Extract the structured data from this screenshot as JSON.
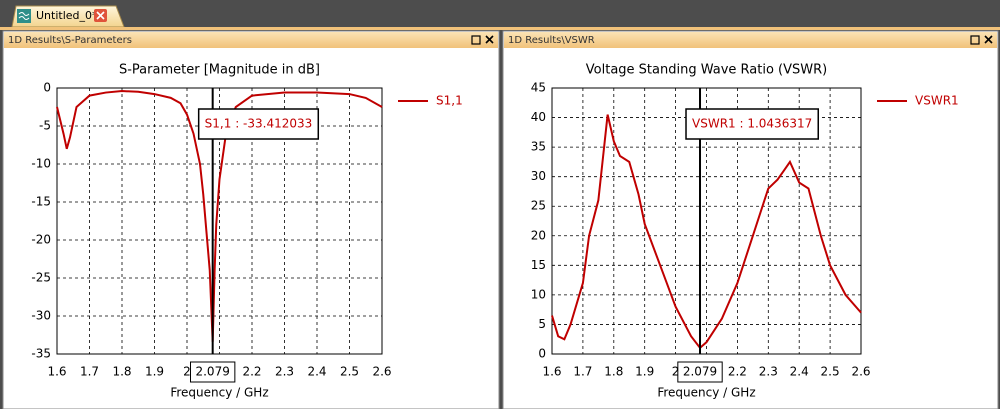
{
  "window": {
    "tab": "Untitled_0*"
  },
  "chart_data": [
    {
      "type": "line",
      "panel_title": "1D Results\\S-Parameters",
      "title": "S-Parameter [Magnitude in dB]",
      "xlabel": "Frequency / GHz",
      "x": [
        1.6,
        1.62,
        1.63,
        1.64,
        1.66,
        1.7,
        1.75,
        1.8,
        1.85,
        1.9,
        1.95,
        1.98,
        2.0,
        2.02,
        2.04,
        2.05,
        2.06,
        2.07,
        2.079,
        2.085,
        2.09,
        2.1,
        2.12,
        2.15,
        2.2,
        2.3,
        2.4,
        2.5,
        2.55,
        2.6
      ],
      "series": [
        {
          "name": "S1,1",
          "color": "#c00000",
          "values": [
            -2.5,
            -6,
            -8,
            -6.5,
            -2.5,
            -1,
            -0.6,
            -0.4,
            -0.5,
            -0.8,
            -1.3,
            -2,
            -3.5,
            -6,
            -10,
            -14,
            -19,
            -24,
            -33.4,
            -24,
            -18,
            -12,
            -6,
            -2.5,
            -1,
            -0.6,
            -0.6,
            -0.8,
            -1.3,
            -2.5
          ]
        }
      ],
      "xlim": [
        1.6,
        2.6
      ],
      "ylim": [
        -35,
        0
      ],
      "xticks": [
        1.6,
        1.7,
        1.8,
        1.9,
        2.0,
        2.1,
        2.2,
        2.3,
        2.4,
        2.5,
        2.6
      ],
      "yticks": [
        0,
        -5,
        -10,
        -15,
        -20,
        -25,
        -30,
        -35
      ],
      "grid": true,
      "legend": "right",
      "marker": {
        "x": 2.079,
        "label": "S1,1 : -33.412033"
      }
    },
    {
      "type": "line",
      "panel_title": "1D Results\\VSWR",
      "title": "Voltage Standing Wave Ratio (VSWR)",
      "xlabel": "Frequency / GHz",
      "x": [
        1.6,
        1.62,
        1.64,
        1.66,
        1.7,
        1.72,
        1.75,
        1.78,
        1.8,
        1.82,
        1.85,
        1.88,
        1.9,
        1.95,
        2.0,
        2.05,
        2.079,
        2.1,
        2.15,
        2.2,
        2.25,
        2.3,
        2.33,
        2.35,
        2.37,
        2.4,
        2.43,
        2.47,
        2.5,
        2.55,
        2.6
      ],
      "series": [
        {
          "name": "VSWR1",
          "color": "#c00000",
          "values": [
            6.5,
            3,
            2.5,
            5,
            12,
            20,
            26,
            40.5,
            36,
            33.5,
            32.5,
            27,
            22,
            15,
            8,
            3,
            1.04,
            2,
            6,
            12,
            20,
            28,
            29.5,
            31,
            32.5,
            29,
            28,
            20,
            15,
            10,
            7
          ]
        }
      ],
      "xlim": [
        1.6,
        2.6
      ],
      "ylim": [
        0,
        45
      ],
      "xticks": [
        1.6,
        1.7,
        1.8,
        1.9,
        2.0,
        2.1,
        2.2,
        2.3,
        2.4,
        2.5,
        2.6
      ],
      "yticks": [
        0,
        5,
        10,
        15,
        20,
        25,
        30,
        35,
        40,
        45
      ],
      "grid": true,
      "legend": "right",
      "marker": {
        "x": 2.079,
        "label": "VSWR1 : 1.0436317"
      }
    }
  ]
}
